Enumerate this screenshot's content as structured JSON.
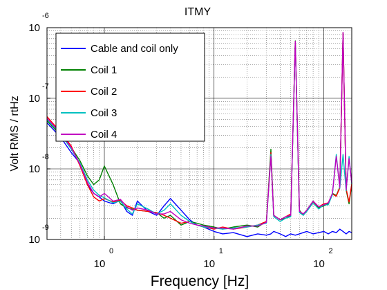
{
  "chart_data": {
    "type": "line",
    "title": "ITMY",
    "xlabel": "Frequency [Hz]",
    "ylabel": "Volt RMS / rtHz",
    "xscale": "log",
    "yscale": "log",
    "xlim": [
      0.3,
      180
    ],
    "ylim": [
      1e-09,
      1e-06
    ],
    "grid": true,
    "legend_position": "top-left",
    "x_ticks": [
      {
        "base": "10",
        "exp": "0",
        "value": 1
      },
      {
        "base": "10",
        "exp": "1",
        "value": 10
      },
      {
        "base": "10",
        "exp": "2",
        "value": 100
      }
    ],
    "y_ticks": [
      {
        "base": "10",
        "exp": "-9",
        "value": 1e-09
      },
      {
        "base": "10",
        "exp": "-8",
        "value": 1e-08
      },
      {
        "base": "10",
        "exp": "-7",
        "value": 1e-07
      },
      {
        "base": "10",
        "exp": "-6",
        "value": 1e-06
      }
    ],
    "x": [
      0.3,
      0.4,
      0.5,
      0.6,
      0.7,
      0.8,
      0.9,
      1.0,
      1.2,
      1.4,
      1.6,
      1.8,
      2.0,
      2.5,
      3.0,
      3.5,
      4.0,
      5.0,
      6.0,
      7.0,
      8.0,
      10,
      12,
      15,
      20,
      25,
      30,
      33,
      35,
      40,
      45,
      50,
      55,
      60,
      65,
      70,
      80,
      90,
      100,
      110,
      120,
      130,
      140,
      150,
      160,
      170,
      180
    ],
    "series": [
      {
        "name": "Cable and coil only",
        "color": "#0000ff",
        "values": [
          4.5e-08,
          2.8e-08,
          1.7e-08,
          1.2e-08,
          6e-09,
          4.5e-09,
          4e-09,
          3.5e-09,
          3.2e-09,
          3.6e-09,
          2.5e-09,
          2.2e-09,
          3.5e-09,
          2.5e-09,
          2.2e-09,
          3e-09,
          3.8e-09,
          2.6e-09,
          1.9e-09,
          1.6e-09,
          1.5e-09,
          1.3e-09,
          1.2e-09,
          1.25e-09,
          1.1e-09,
          1.2e-09,
          1.15e-09,
          1.2e-09,
          1.3e-09,
          1.2e-09,
          1.1e-09,
          1.2e-09,
          1.15e-09,
          1.2e-09,
          1.25e-09,
          1.3e-09,
          1.2e-09,
          1.25e-09,
          1.3e-09,
          1.2e-09,
          1.3e-09,
          1.25e-09,
          1.4e-09,
          1.3e-09,
          1.2e-09,
          1.3e-09,
          1.25e-09
        ]
      },
      {
        "name": "Coil 1",
        "color": "#008000",
        "values": [
          4.8e-08,
          3e-08,
          2e-08,
          1.3e-08,
          8e-09,
          6e-09,
          7e-09,
          1.1e-08,
          6e-09,
          3.2e-09,
          2.8e-09,
          2.7e-09,
          2.6e-09,
          2.5e-09,
          2.4e-09,
          2e-09,
          2.2e-09,
          1.6e-09,
          1.8e-09,
          1.7e-09,
          1.6e-09,
          1.5e-09,
          1.4e-09,
          1.5e-09,
          1.6e-09,
          1.5e-09,
          1.8e-09,
          1.9e-08,
          2.2e-09,
          1.9e-09,
          2e-09,
          2.2e-09,
          6.5e-07,
          2.6e-09,
          2.2e-09,
          2.6e-09,
          3.5e-09,
          2.8e-09,
          3e-09,
          3.2e-09,
          4.5e-09,
          4.2e-09,
          5.5e-09,
          8.5e-07,
          5e-09,
          3.2e-09,
          6e-09
        ]
      },
      {
        "name": "Coil 2",
        "color": "#ff0000",
        "values": [
          5.5e-08,
          3.3e-08,
          2.1e-08,
          1.1e-08,
          6e-09,
          4e-09,
          3.5e-09,
          3.8e-09,
          3.4e-09,
          3.6e-09,
          3e-09,
          2.8e-09,
          2.6e-09,
          2.5e-09,
          2.4e-09,
          2.2e-09,
          2e-09,
          1.7e-09,
          1.8e-09,
          1.6e-09,
          1.5e-09,
          1.4e-09,
          1.5e-09,
          1.4e-09,
          1.5e-09,
          1.6e-09,
          1.8e-09,
          1.7e-08,
          2.2e-09,
          1.9e-09,
          2.1e-09,
          2.3e-09,
          6.3e-07,
          2.5e-09,
          2.3e-09,
          2.6e-09,
          3.4e-09,
          2.9e-09,
          3.2e-09,
          3.3e-09,
          4.4e-09,
          4.1e-09,
          5.4e-09,
          8.4e-07,
          5.2e-09,
          3.4e-09,
          6.2e-09
        ]
      },
      {
        "name": "Coil 3",
        "color": "#00c0c0",
        "values": [
          5e-08,
          3.1e-08,
          1.9e-08,
          1.2e-08,
          7e-09,
          5e-09,
          4.2e-09,
          3.9e-09,
          3.3e-09,
          3.5e-09,
          2.7e-09,
          2.3e-09,
          3.2e-09,
          2.7e-09,
          2.3e-09,
          2.6e-09,
          3.2e-09,
          2.2e-09,
          1.8e-09,
          1.6e-09,
          1.5e-09,
          1.45e-09,
          1.4e-09,
          1.45e-09,
          1.5e-09,
          1.6e-09,
          1.7e-09,
          1.6e-08,
          2.1e-09,
          1.8e-09,
          2e-09,
          2.1e-09,
          6.1e-07,
          2.4e-09,
          2.2e-09,
          2.5e-09,
          3.3e-09,
          2.7e-09,
          3.1e-09,
          3.1e-09,
          4.3e-09,
          1.6e-08,
          5.3e-09,
          1.6e-08,
          4.9e-09,
          1.5e-08,
          6.1e-09
        ]
      },
      {
        "name": "Coil 4",
        "color": "#c000c0",
        "values": [
          5.2e-08,
          3.2e-08,
          2e-08,
          1.15e-08,
          6.5e-09,
          4.5e-09,
          4e-09,
          4.5e-09,
          3.5e-09,
          3.7e-09,
          2.9e-09,
          2.6e-09,
          2.8e-09,
          2.6e-09,
          2.3e-09,
          2.3e-09,
          2.5e-09,
          1.9e-09,
          1.7e-09,
          1.6e-09,
          1.55e-09,
          1.45e-09,
          1.45e-09,
          1.4e-09,
          1.55e-09,
          1.55e-09,
          1.75e-09,
          1.5e-08,
          2.2e-09,
          1.9e-09,
          2.1e-09,
          2.2e-09,
          6.4e-07,
          2.5e-09,
          2.3e-09,
          2.6e-09,
          3.5e-09,
          2.9e-09,
          3.1e-09,
          3.3e-09,
          4.5e-09,
          1.5e-08,
          5.5e-09,
          8.6e-07,
          5.1e-09,
          1.4e-08,
          6.3e-09
        ]
      }
    ]
  }
}
